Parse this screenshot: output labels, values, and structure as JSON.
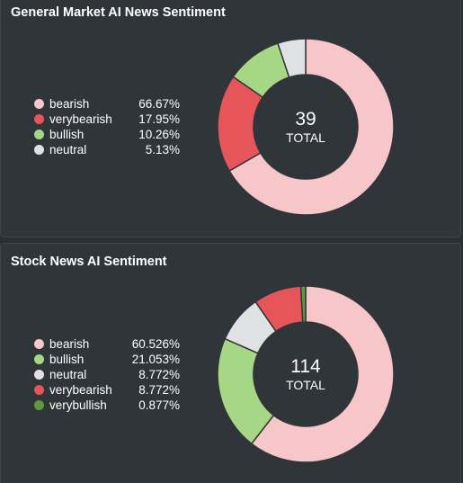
{
  "colors": {
    "bearish": "#f6c6c8",
    "verybearish": "#e6555a",
    "bullish": "#a6d785",
    "neutral": "#dfe1e3",
    "verybullish": "#5e9a3c",
    "background": "#30353a",
    "hole": "#30353a"
  },
  "chart_data": [
    {
      "type": "pie",
      "title": "General Market AI News Sentiment",
      "total": "39",
      "total_label": "TOTAL",
      "series": [
        {
          "name": "bearish",
          "value": 66.67,
          "label": "66.67%",
          "color_key": "bearish"
        },
        {
          "name": "verybearish",
          "value": 17.95,
          "label": "17.95%",
          "color_key": "verybearish"
        },
        {
          "name": "bullish",
          "value": 10.26,
          "label": "10.26%",
          "color_key": "bullish"
        },
        {
          "name": "neutral",
          "value": 5.13,
          "label": "5.13%",
          "color_key": "neutral"
        }
      ]
    },
    {
      "type": "pie",
      "title": "Stock News AI Sentiment",
      "total": "114",
      "total_label": "TOTAL",
      "series": [
        {
          "name": "bearish",
          "value": 60.526,
          "label": "60.526%",
          "color_key": "bearish"
        },
        {
          "name": "bullish",
          "value": 21.053,
          "label": "21.053%",
          "color_key": "bullish"
        },
        {
          "name": "neutral",
          "value": 8.772,
          "label": "8.772%",
          "color_key": "neutral"
        },
        {
          "name": "verybearish",
          "value": 8.772,
          "label": "8.772%",
          "color_key": "verybearish"
        },
        {
          "name": "verybullish",
          "value": 0.877,
          "label": "0.877%",
          "color_key": "verybullish"
        }
      ]
    }
  ]
}
